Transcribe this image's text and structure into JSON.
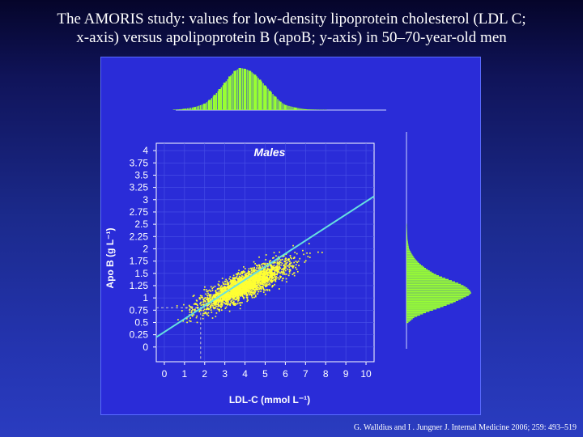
{
  "slide": {
    "title_line1": "The AMORIS study: values for low-density lipoprotein cholesterol (LDL C;",
    "title_line2": "x-axis) versus apolipoprotein B (apoB; y-axis) in 50–70-year-old men",
    "citation": "G. Walldius and  I . Jungner J. Internal Medicine 2006; 259: 493–519"
  },
  "colors": {
    "background": "#1b2a8c",
    "panel": "#2a2cd8",
    "points": "#ffff33",
    "histogram": "#99ff33",
    "regression": "#66e0e0",
    "reference": "#cccccc"
  },
  "chart_data": {
    "type": "scatter",
    "title": "Males",
    "xlabel": "LDL-C (mmol L⁻¹)",
    "ylabel": "Apo B (g L⁻¹)",
    "xlim": [
      -0.4,
      10.4
    ],
    "ylim": [
      -0.3,
      4.15
    ],
    "x_ticks": [
      "0",
      "1",
      "2",
      "3",
      "4",
      "5",
      "6",
      "7",
      "8",
      "9",
      "10"
    ],
    "y_ticks": [
      "0",
      "0.25",
      "0.5",
      "0.75",
      "1",
      "1.25",
      "1.5",
      "1.75",
      "2",
      "2.25",
      "2.5",
      "2.75",
      "3",
      "3.25",
      "3.5",
      "3.75",
      "4"
    ],
    "grid": true,
    "regression_line": {
      "x": [
        -0.4,
        10.4
      ],
      "y": [
        0.2,
        3.07
      ]
    },
    "reference_line": {
      "x": 1.8,
      "y": 0.8
    },
    "scatter_cloud": {
      "center": [
        3.9,
        1.24
      ],
      "x_range": [
        1.0,
        8.0
      ],
      "y_range": [
        0.6,
        2.2
      ],
      "correlation": 0.85
    },
    "x_histogram": {
      "bins": [
        0.5,
        1.0,
        1.5,
        2.0,
        2.25,
        2.5,
        2.75,
        3.0,
        3.25,
        3.5,
        3.75,
        4.0,
        4.25,
        4.5,
        4.75,
        5.0,
        5.25,
        5.5,
        5.75,
        6.0,
        6.5,
        7.0,
        8.0
      ],
      "frequency": [
        0.01,
        0.03,
        0.07,
        0.15,
        0.24,
        0.36,
        0.5,
        0.65,
        0.8,
        0.93,
        1.0,
        0.98,
        0.93,
        0.84,
        0.72,
        0.58,
        0.45,
        0.32,
        0.2,
        0.12,
        0.06,
        0.02,
        0.005
      ]
    },
    "y_histogram": {
      "bins": [
        0.5,
        0.6,
        0.7,
        0.8,
        0.9,
        1.0,
        1.05,
        1.1,
        1.15,
        1.2,
        1.25,
        1.3,
        1.35,
        1.4,
        1.45,
        1.5,
        1.6,
        1.7,
        1.8,
        1.9,
        2.0,
        2.2,
        2.5
      ],
      "frequency": [
        0.03,
        0.12,
        0.3,
        0.52,
        0.72,
        0.88,
        0.96,
        1.0,
        0.98,
        0.94,
        0.88,
        0.8,
        0.7,
        0.6,
        0.5,
        0.42,
        0.3,
        0.2,
        0.13,
        0.08,
        0.04,
        0.015,
        0.005
      ]
    }
  }
}
